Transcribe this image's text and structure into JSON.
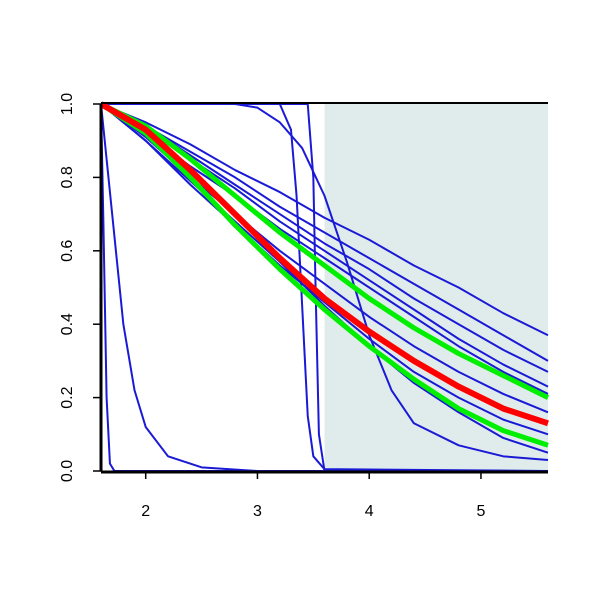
{
  "chart_data": {
    "type": "line",
    "xlim": [
      1.6,
      5.6
    ],
    "ylim": [
      0,
      1
    ],
    "xticks": [
      2,
      3,
      4,
      5
    ],
    "yticks": [
      {
        "value": 0,
        "label": "0.0"
      },
      0.2,
      0.4,
      0.6,
      0.8,
      {
        "value": 1,
        "label": "1.0"
      }
    ],
    "shaded_region": {
      "xlim": [
        3.6,
        5.6
      ],
      "color": "#e0ecec"
    },
    "x": [
      1.6,
      2.0,
      2.4,
      2.8,
      3.2,
      3.6,
      4.0,
      4.4,
      4.8,
      5.2,
      5.6
    ],
    "series": [
      {
        "color": "#1a1ad6",
        "width": 2,
        "x": [
          1.6,
          1.62,
          1.65,
          1.68,
          1.72,
          5.6
        ],
        "values": [
          1,
          0.7,
          0.2,
          0.02,
          0,
          0
        ]
      },
      {
        "color": "#1a1ad6",
        "width": 2,
        "x": [
          1.6,
          1.65,
          1.7,
          1.8,
          1.9,
          2.0,
          2.2,
          2.5,
          3.0,
          5.6
        ],
        "values": [
          1,
          0.85,
          0.7,
          0.4,
          0.22,
          0.12,
          0.04,
          0.01,
          0,
          0
        ]
      },
      {
        "color": "#1a1ad6",
        "width": 2,
        "x": [
          1.6,
          3.2,
          3.3,
          3.35,
          3.4,
          3.45,
          3.5,
          3.6,
          5.6
        ],
        "values": [
          1,
          1,
          0.93,
          0.75,
          0.45,
          0.15,
          0.04,
          0.005,
          0
        ]
      },
      {
        "color": "#1a1ad6",
        "width": 2,
        "x": [
          1.6,
          3.45,
          3.5,
          3.52,
          3.55,
          3.6,
          5.6
        ],
        "values": [
          1,
          1,
          0.8,
          0.5,
          0.1,
          0,
          0
        ]
      },
      {
        "color": "#1a1ad6",
        "width": 2,
        "x": [
          1.6,
          2.8,
          3.0,
          3.2,
          3.4,
          3.6,
          3.8,
          4.0,
          4.2,
          4.4,
          4.8,
          5.2,
          5.6
        ],
        "values": [
          1,
          1,
          0.99,
          0.95,
          0.88,
          0.75,
          0.57,
          0.37,
          0.22,
          0.13,
          0.07,
          0.04,
          0.03
        ]
      },
      {
        "color": "#1a1ad6",
        "width": 2,
        "values": [
          1,
          0.95,
          0.89,
          0.82,
          0.76,
          0.69,
          0.63,
          0.56,
          0.5,
          0.43,
          0.37
        ]
      },
      {
        "color": "#1a1ad6",
        "width": 2,
        "values": [
          1,
          0.94,
          0.87,
          0.8,
          0.72,
          0.65,
          0.58,
          0.51,
          0.44,
          0.37,
          0.3
        ]
      },
      {
        "color": "#1a1ad6",
        "width": 2,
        "values": [
          1,
          0.94,
          0.86,
          0.78,
          0.7,
          0.62,
          0.55,
          0.47,
          0.4,
          0.33,
          0.27
        ]
      },
      {
        "color": "#1a1ad6",
        "width": 2,
        "values": [
          1,
          0.93,
          0.85,
          0.77,
          0.68,
          0.6,
          0.52,
          0.44,
          0.36,
          0.29,
          0.23
        ]
      },
      {
        "color": "#1a1ad6",
        "width": 2,
        "values": [
          1,
          0.92,
          0.83,
          0.75,
          0.66,
          0.58,
          0.5,
          0.42,
          0.34,
          0.27,
          0.21
        ]
      },
      {
        "color": "#1a1ad6",
        "width": 2,
        "values": [
          1,
          0.91,
          0.8,
          0.7,
          0.6,
          0.51,
          0.42,
          0.34,
          0.27,
          0.21,
          0.16
        ]
      },
      {
        "color": "#1a1ad6",
        "width": 2,
        "values": [
          1,
          0.9,
          0.78,
          0.67,
          0.56,
          0.46,
          0.36,
          0.27,
          0.2,
          0.14,
          0.1
        ]
      },
      {
        "color": "#1a1ad6",
        "width": 2,
        "values": [
          1,
          0.9,
          0.79,
          0.68,
          0.57,
          0.45,
          0.34,
          0.24,
          0.16,
          0.09,
          0.05
        ]
      },
      {
        "color": "#00ee00",
        "width": 5,
        "values": [
          1,
          0.94,
          0.85,
          0.75,
          0.65,
          0.56,
          0.47,
          0.39,
          0.32,
          0.26,
          0.2
        ]
      },
      {
        "color": "#00ee00",
        "width": 5,
        "values": [
          1,
          0.92,
          0.8,
          0.67,
          0.55,
          0.44,
          0.34,
          0.25,
          0.17,
          0.11,
          0.07
        ]
      },
      {
        "color": "#ff0000",
        "width": 6,
        "values": [
          1,
          0.93,
          0.82,
          0.7,
          0.58,
          0.47,
          0.38,
          0.3,
          0.23,
          0.17,
          0.13
        ]
      }
    ]
  }
}
